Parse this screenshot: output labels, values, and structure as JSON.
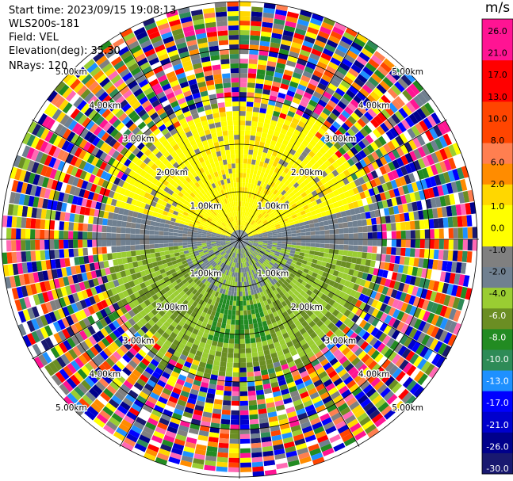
{
  "header": {
    "start_time": "Start time: 2023/09/15 19:08:13",
    "instrument": "WLS200s-181",
    "field": "Field: VEL",
    "elevation": "Elevation(deg): 35.30",
    "nrays": "NRays: 120"
  },
  "colorbar": {
    "unit": "m/s",
    "ticks": [
      "26.0",
      "21.0",
      "17.0",
      "13.0",
      "10.0",
      "8.0",
      "6.0",
      "2.0",
      "1.0",
      "0.0",
      "-1.0",
      "-2.0",
      "-4.0",
      "-6.0",
      "-8.0",
      "-10.0",
      "-13.0",
      "-17.0",
      "-21.0",
      "-26.0",
      "-30.0"
    ],
    "colors": [
      "#ff1493",
      "#ff1493",
      "#ff0000",
      "#ff0000",
      "#ff4500",
      "#ff4500",
      "#ff7f50",
      "#ff8c00",
      "#ffd700",
      "#ffff00",
      "#ffff00",
      "#808080",
      "#708090",
      "#9acd32",
      "#6b8e23",
      "#228b22",
      "#2e8b57",
      "#1e90ff",
      "#0000ff",
      "#0000cd",
      "#00008b",
      "#191970"
    ]
  },
  "chart_data": {
    "type": "heatmap",
    "projection": "polar-ppi",
    "range_rings_km": [
      "1.00km",
      "2.00km",
      "3.00km",
      "4.00km",
      "5.00km"
    ],
    "spokes_deg": [
      0,
      30,
      60,
      90,
      120,
      150,
      180,
      210,
      240,
      270,
      300,
      330
    ],
    "field": "VEL",
    "units": "m/s",
    "value_range": [
      -30,
      26
    ],
    "nrays": 120
  }
}
